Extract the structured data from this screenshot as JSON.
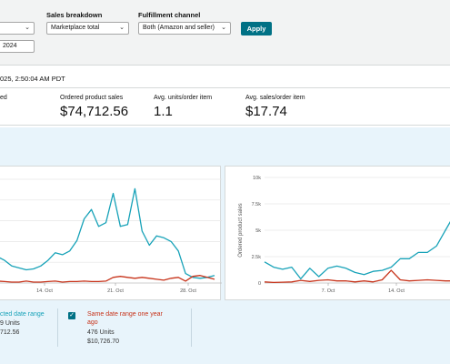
{
  "filters": {
    "sales_breakdown_label": "Sales breakdown",
    "sales_breakdown_value": "Marketplace total",
    "fulfillment_label": "Fulfillment channel",
    "fulfillment_value": "Both (Amazon and seller)",
    "date_to_value": "2024",
    "apply_label": "Apply"
  },
  "timestamp": "025, 2:50:04 AM PDT",
  "kpis": [
    {
      "label": "ed",
      "value": ""
    },
    {
      "label": "Ordered product sales",
      "value": "$74,712.56"
    },
    {
      "label": "Avg. units/order item",
      "value": "1.1"
    },
    {
      "label": "Avg. sales/order item",
      "value": "$17.74"
    }
  ],
  "legend": {
    "selected_label": "cted date range",
    "selected_units": "9 Units",
    "selected_sales": "712.56",
    "compare_label_line1": "Same date range one year",
    "compare_label_line2": "ago",
    "compare_units": "476 Units",
    "compare_sales": "$10,726.70"
  },
  "colors": {
    "current_series": "#17a2b8",
    "compare_series": "#c7331a",
    "apply_button": "#007185"
  },
  "chart_data": [
    {
      "type": "line",
      "x_ticks": [
        "14. Oct",
        "21. Oct",
        "28. Oct"
      ],
      "y_ticks": [],
      "ylabel": "",
      "grid": true,
      "series": [
        {
          "values": [
            28,
            24,
            18,
            16,
            14,
            15,
            18,
            24,
            32,
            30,
            34,
            45,
            68,
            78,
            60,
            64,
            95,
            60,
            62,
            100,
            55,
            40,
            50,
            48,
            44,
            34,
            10,
            6,
            5,
            6,
            8
          ]
        },
        {
          "values": [
            2,
            1.5,
            1,
            1,
            2,
            1,
            1,
            1.5,
            2,
            1,
            1.5,
            1.5,
            2,
            1.5,
            1.5,
            2,
            6,
            7,
            6,
            5,
            6,
            5,
            4,
            3,
            5,
            6,
            2,
            7,
            8,
            6,
            4
          ]
        }
      ]
    },
    {
      "type": "line",
      "x_ticks": [
        "7. Oct",
        "14. Oct"
      ],
      "y_ticks": [
        "0",
        "2.5k",
        "5k",
        "7.5k",
        "10k"
      ],
      "ylabel": "Ordered product sales",
      "ylim": [
        0,
        10000
      ],
      "grid": true,
      "series": [
        {
          "values": [
            2000,
            1500,
            1300,
            1500,
            400,
            1400,
            600,
            1400,
            1600,
            1400,
            1000,
            800,
            1100,
            1200,
            1500,
            2300,
            2300,
            2900,
            2900,
            3500,
            5000,
            6500
          ]
        },
        {
          "values": [
            100,
            50,
            80,
            100,
            250,
            150,
            250,
            300,
            200,
            200,
            100,
            200,
            100,
            300,
            1200,
            300,
            200,
            250,
            300,
            250,
            200,
            200
          ]
        }
      ]
    }
  ]
}
